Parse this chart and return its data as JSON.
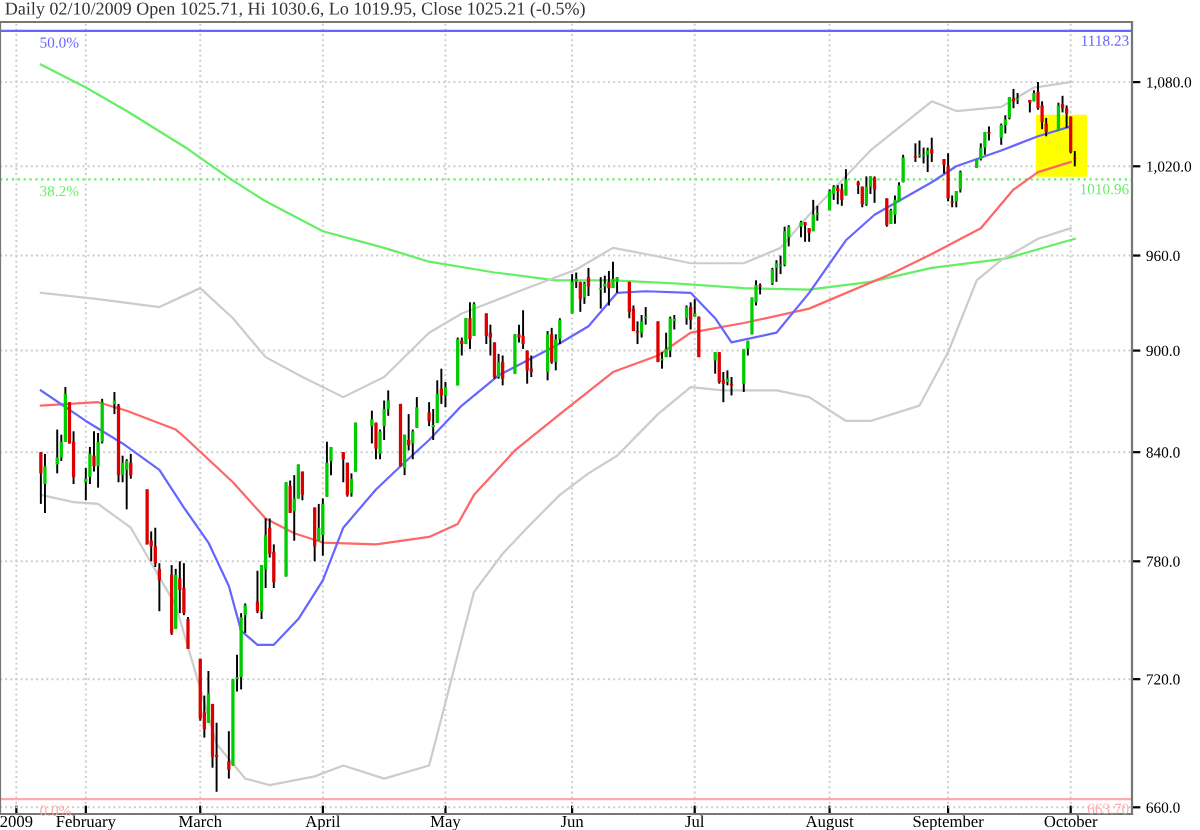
{
  "chart_data": {
    "type": "candlestick",
    "title": "Daily 02/10/2009 Open 1025.71, Hi 1030.6, Lo 1019.95, Close 1025.21 (-0.5%)",
    "x": [
      "2009-01-22",
      "2009-01-23",
      "2009-01-26",
      "2009-01-27",
      "2009-01-28",
      "2009-01-29",
      "2009-01-30",
      "2009-02-02",
      "2009-02-03",
      "2009-02-04",
      "2009-02-05",
      "2009-02-06",
      "2009-02-09",
      "2009-02-10",
      "2009-02-11",
      "2009-02-12",
      "2009-02-13",
      "2009-02-17",
      "2009-02-18",
      "2009-02-19",
      "2009-02-20",
      "2009-02-23",
      "2009-02-24",
      "2009-02-25",
      "2009-02-26",
      "2009-02-27",
      "2009-03-02",
      "2009-03-03",
      "2009-03-04",
      "2009-03-05",
      "2009-03-06",
      "2009-03-09",
      "2009-03-10",
      "2009-03-11",
      "2009-03-12",
      "2009-03-13",
      "2009-03-16",
      "2009-03-17",
      "2009-03-18",
      "2009-03-19",
      "2009-03-20",
      "2009-03-23",
      "2009-03-24",
      "2009-03-25",
      "2009-03-26",
      "2009-03-27",
      "2009-03-30",
      "2009-03-31",
      "2009-04-01",
      "2009-04-02",
      "2009-04-03",
      "2009-04-06",
      "2009-04-07",
      "2009-04-08",
      "2009-04-09",
      "2009-04-13",
      "2009-04-14",
      "2009-04-15",
      "2009-04-16",
      "2009-04-17",
      "2009-04-20",
      "2009-04-21",
      "2009-04-22",
      "2009-04-23",
      "2009-04-24",
      "2009-04-27",
      "2009-04-28",
      "2009-04-29",
      "2009-04-30",
      "2009-05-01",
      "2009-05-04",
      "2009-05-05",
      "2009-05-06",
      "2009-05-07",
      "2009-05-08",
      "2009-05-11",
      "2009-05-12",
      "2009-05-13",
      "2009-05-14",
      "2009-05-15",
      "2009-05-18",
      "2009-05-19",
      "2009-05-20",
      "2009-05-21",
      "2009-05-22",
      "2009-05-26",
      "2009-05-27",
      "2009-05-28",
      "2009-05-29",
      "2009-06-01",
      "2009-06-02",
      "2009-06-03",
      "2009-06-04",
      "2009-06-05",
      "2009-06-08",
      "2009-06-09",
      "2009-06-10",
      "2009-06-11",
      "2009-06-12",
      "2009-06-15",
      "2009-06-16",
      "2009-06-17",
      "2009-06-18",
      "2009-06-19",
      "2009-06-22",
      "2009-06-23",
      "2009-06-24",
      "2009-06-25",
      "2009-06-26",
      "2009-06-29",
      "2009-06-30",
      "2009-07-01",
      "2009-07-02",
      "2009-07-06",
      "2009-07-07",
      "2009-07-08",
      "2009-07-09",
      "2009-07-10",
      "2009-07-13",
      "2009-07-14",
      "2009-07-15",
      "2009-07-16",
      "2009-07-17",
      "2009-07-20",
      "2009-07-21",
      "2009-07-22",
      "2009-07-23",
      "2009-07-24",
      "2009-07-27",
      "2009-07-28",
      "2009-07-29",
      "2009-07-30",
      "2009-07-31",
      "2009-08-03",
      "2009-08-04",
      "2009-08-05",
      "2009-08-06",
      "2009-08-07",
      "2009-08-10",
      "2009-08-11",
      "2009-08-12",
      "2009-08-13",
      "2009-08-14",
      "2009-08-17",
      "2009-08-18",
      "2009-08-19",
      "2009-08-20",
      "2009-08-21",
      "2009-08-24",
      "2009-08-25",
      "2009-08-26",
      "2009-08-27",
      "2009-08-28",
      "2009-08-31",
      "2009-09-01",
      "2009-09-02",
      "2009-09-03",
      "2009-09-04",
      "2009-09-08",
      "2009-09-09",
      "2009-09-10",
      "2009-09-11",
      "2009-09-14",
      "2009-09-15",
      "2009-09-16",
      "2009-09-17",
      "2009-09-18",
      "2009-09-21",
      "2009-09-22",
      "2009-09-23",
      "2009-09-24",
      "2009-09-25",
      "2009-09-28",
      "2009-09-29",
      "2009-09-30",
      "2009-10-01",
      "2009-10-02"
    ],
    "ohlc": [
      [
        840,
        840,
        811,
        828
      ],
      [
        822,
        839,
        806,
        832
      ],
      [
        833,
        853,
        828,
        837
      ],
      [
        837,
        850,
        835,
        846
      ],
      [
        846,
        878,
        846,
        874
      ],
      [
        869,
        869,
        845,
        845
      ],
      [
        846,
        852,
        822,
        826
      ],
      [
        823,
        831,
        813,
        825
      ],
      [
        826,
        843,
        822,
        839
      ],
      [
        838,
        852,
        829,
        832
      ],
      [
        832,
        851,
        820,
        846
      ],
      [
        846,
        871,
        845,
        869
      ],
      [
        868,
        875,
        862,
        870
      ],
      [
        867,
        868,
        823,
        827
      ],
      [
        827,
        838,
        823,
        834
      ],
      [
        830,
        836,
        808,
        835
      ],
      [
        834,
        839,
        825,
        827
      ],
      [
        819,
        819,
        789,
        789
      ],
      [
        791,
        796,
        780,
        788
      ],
      [
        788,
        798,
        777,
        779
      ],
      [
        776,
        779,
        754,
        770
      ],
      [
        773,
        778,
        742,
        743
      ],
      [
        745,
        776,
        745,
        773
      ],
      [
        771,
        780,
        753,
        765
      ],
      [
        766,
        779,
        752,
        753
      ],
      [
        750,
        751,
        735,
        735
      ],
      [
        730,
        730,
        700,
        701
      ],
      [
        704,
        712,
        692,
        696
      ],
      [
        699,
        724,
        699,
        713
      ],
      [
        708,
        708,
        678,
        683
      ],
      [
        684,
        699,
        667,
        683
      ],
      [
        681,
        695,
        673,
        677
      ],
      [
        679,
        720,
        679,
        720
      ],
      [
        720,
        732,
        714,
        721
      ],
      [
        721,
        753,
        715,
        751
      ],
      [
        752,
        758,
        743,
        757
      ],
      [
        759,
        775,
        753,
        754
      ],
      [
        754,
        778,
        750,
        778
      ],
      [
        776,
        803,
        766,
        794
      ],
      [
        798,
        803,
        782,
        784
      ],
      [
        785,
        789,
        766,
        769
      ],
      [
        772,
        823,
        772,
        823
      ],
      [
        821,
        824,
        806,
        806
      ],
      [
        807,
        827,
        791,
        814
      ],
      [
        814,
        833,
        814,
        833
      ],
      [
        829,
        829,
        813,
        816
      ],
      [
        809,
        809,
        780,
        788
      ],
      [
        791,
        811,
        791,
        798
      ],
      [
        794,
        814,
        783,
        811
      ],
      [
        815,
        846,
        815,
        834
      ],
      [
        835,
        843,
        827,
        843
      ],
      [
        840,
        840,
        823,
        836
      ],
      [
        834,
        834,
        815,
        816
      ],
      [
        817,
        828,
        815,
        825
      ],
      [
        829,
        857,
        829,
        857
      ],
      [
        855,
        864,
        845,
        859
      ],
      [
        857,
        857,
        836,
        842
      ],
      [
        839,
        853,
        836,
        852
      ],
      [
        855,
        870,
        847,
        865
      ],
      [
        865,
        876,
        861,
        870
      ],
      [
        868,
        868,
        832,
        832
      ],
      [
        831,
        850,
        827,
        850
      ],
      [
        847,
        862,
        841,
        844
      ],
      [
        845,
        853,
        836,
        852
      ],
      [
        854,
        872,
        854,
        866
      ],
      [
        863,
        869,
        855,
        858
      ],
      [
        855,
        865,
        847,
        855
      ],
      [
        857,
        882,
        857,
        874
      ],
      [
        877,
        889,
        868,
        873
      ],
      [
        873,
        881,
        866,
        878
      ],
      [
        879,
        908,
        879,
        907
      ],
      [
        906,
        908,
        897,
        904
      ],
      [
        904,
        920,
        904,
        920
      ],
      [
        920,
        930,
        901,
        907
      ],
      [
        909,
        930,
        909,
        929
      ],
      [
        923,
        923,
        904,
        909
      ],
      [
        911,
        916,
        897,
        908
      ],
      [
        905,
        905,
        883,
        884
      ],
      [
        884,
        898,
        883,
        893
      ],
      [
        893,
        897,
        879,
        883
      ],
      [
        886,
        910,
        886,
        910
      ],
      [
        910,
        916,
        905,
        908
      ],
      [
        909,
        925,
        901,
        904
      ],
      [
        900,
        900,
        880,
        888
      ],
      [
        889,
        897,
        884,
        887
      ],
      [
        887,
        912,
        882,
        910
      ],
      [
        910,
        914,
        892,
        893
      ],
      [
        893,
        910,
        888,
        907
      ],
      [
        907,
        920,
        904,
        919
      ],
      [
        923,
        948,
        923,
        943
      ],
      [
        943,
        949,
        939,
        945
      ],
      [
        943,
        943,
        924,
        932
      ],
      [
        933,
        943,
        929,
        942
      ],
      [
        946,
        952,
        934,
        940
      ],
      [
        938,
        946,
        926,
        939
      ],
      [
        940,
        947,
        936,
        942
      ],
      [
        943,
        950,
        928,
        939
      ],
      [
        939,
        956,
        939,
        945
      ],
      [
        943,
        946,
        936,
        946
      ],
      [
        943,
        943,
        920,
        924
      ],
      [
        926,
        928,
        912,
        912
      ],
      [
        912,
        918,
        904,
        911
      ],
      [
        911,
        922,
        908,
        918
      ],
      [
        920,
        927,
        916,
        921
      ],
      [
        918,
        918,
        893,
        893
      ],
      [
        894,
        899,
        889,
        895
      ],
      [
        896,
        911,
        896,
        901
      ],
      [
        900,
        921,
        896,
        920
      ],
      [
        919,
        922,
        913,
        919
      ],
      [
        920,
        928,
        916,
        927
      ],
      [
        927,
        930,
        913,
        919
      ],
      [
        921,
        932,
        921,
        923
      ],
      [
        921,
        921,
        896,
        896
      ],
      [
        894,
        899,
        886,
        899
      ],
      [
        899,
        899,
        880,
        881
      ],
      [
        882,
        887,
        869,
        880
      ],
      [
        881,
        888,
        879,
        883
      ],
      [
        880,
        884,
        873,
        879
      ],
      [
        880,
        901,
        875,
        901
      ],
      [
        901,
        906,
        897,
        906
      ],
      [
        910,
        933,
        910,
        933
      ],
      [
        930,
        944,
        928,
        941
      ],
      [
        941,
        942,
        935,
        940
      ],
      [
        942,
        952,
        941,
        951
      ],
      [
        952,
        957,
        943,
        955
      ],
      [
        953,
        960,
        948,
        954
      ],
      [
        954,
        979,
        953,
        976
      ],
      [
        972,
        980,
        966,
        979
      ],
      [
        979,
        983,
        972,
        982
      ],
      [
        982,
        982,
        969,
        980
      ],
      [
        978,
        978,
        969,
        975
      ],
      [
        976,
        997,
        976,
        987
      ],
      [
        987,
        993,
        983,
        988
      ],
      [
        990,
        1004,
        990,
        1003
      ],
      [
        1001,
        1007,
        997,
        1006
      ],
      [
        1005,
        1007,
        994,
        1003
      ],
      [
        1004,
        1008,
        993,
        997
      ],
      [
        1000,
        1018,
        1000,
        1011
      ],
      [
        1009,
        1010,
        1001,
        1007
      ],
      [
        1006,
        1006,
        992,
        994
      ],
      [
        994,
        1013,
        993,
        1006
      ],
      [
        1006,
        1013,
        1001,
        1013
      ],
      [
        1012,
        1013,
        995,
        1004
      ],
      [
        998,
        998,
        979,
        980
      ],
      [
        981,
        991,
        981,
        990
      ],
      [
        987,
        1000,
        981,
        997
      ],
      [
        996,
        1009,
        996,
        1007
      ],
      [
        1009,
        1028,
        1009,
        1026
      ],
      [
        1027,
        1036,
        1023,
        1026
      ],
      [
        1027,
        1038,
        1026,
        1028
      ],
      [
        1027,
        1033,
        1022,
        1028
      ],
      [
        1028,
        1033,
        1016,
        1031
      ],
      [
        1032,
        1040,
        1023,
        1029
      ],
      [
        1025,
        1025,
        1015,
        1021
      ],
      [
        1020,
        1029,
        996,
        998
      ],
      [
        996,
        1000,
        992,
        995
      ],
      [
        996,
        1003,
        992,
        1003
      ],
      [
        1004,
        1017,
        1002,
        1016
      ],
      [
        1019,
        1025,
        1019,
        1025
      ],
      [
        1025,
        1036,
        1024,
        1033
      ],
      [
        1033,
        1044,
        1028,
        1044
      ],
      [
        1044,
        1048,
        1038,
        1043
      ],
      [
        1040,
        1050,
        1035,
        1049
      ],
      [
        1049,
        1056,
        1043,
        1053
      ],
      [
        1054,
        1069,
        1053,
        1069
      ],
      [
        1068,
        1075,
        1061,
        1066
      ],
      [
        1067,
        1072,
        1064,
        1068
      ],
      [
        1067,
        1067,
        1058,
        1065
      ],
      [
        1066,
        1074,
        1066,
        1072
      ],
      [
        1073,
        1080,
        1060,
        1061
      ],
      [
        1063,
        1066,
        1046,
        1051
      ],
      [
        1050,
        1054,
        1041,
        1044
      ],
      [
        1045,
        1065,
        1045,
        1063
      ],
      [
        1064,
        1070,
        1058,
        1061
      ],
      [
        1061,
        1063,
        1047,
        1057
      ],
      [
        1055,
        1055,
        1029,
        1030
      ],
      [
        1025.71,
        1030.6,
        1019.95,
        1025.21
      ]
    ],
    "series": [
      {
        "type": "line",
        "color": "#66ee66",
        "x": [
          "2009-01-22",
          "2009-02-02",
          "2009-02-12",
          "2009-02-27",
          "2009-03-09",
          "2009-03-18",
          "2009-04-01",
          "2009-04-16",
          "2009-04-27",
          "2009-05-13",
          "2009-05-28",
          "2009-06-11",
          "2009-06-26",
          "2009-07-13",
          "2009-07-29",
          "2009-08-13",
          "2009-08-28",
          "2009-09-15",
          "2009-10-02"
        ],
        "values": [
          1093,
          1076,
          1059,
          1032,
          1012,
          996,
          976,
          965,
          956,
          949,
          944,
          944,
          942,
          939,
          938,
          943,
          952,
          958,
          971
        ]
      },
      {
        "type": "line",
        "color": "#ff6666",
        "x": [
          "2009-01-22",
          "2009-02-05",
          "2009-02-12",
          "2009-02-24",
          "2009-02-26",
          "2009-03-10",
          "2009-03-18",
          "2009-03-25",
          "2009-04-01",
          "2009-04-14",
          "2009-04-27",
          "2009-05-04",
          "2009-05-08",
          "2009-05-18",
          "2009-05-29",
          "2009-06-11",
          "2009-06-22",
          "2009-06-30",
          "2009-07-13",
          "2009-07-29",
          "2009-08-18",
          "2009-08-28",
          "2009-09-09",
          "2009-09-17",
          "2009-09-23",
          "2009-10-01"
        ],
        "values": [
          867,
          869,
          864,
          853,
          849,
          823,
          803,
          795,
          790,
          789,
          793,
          800,
          816,
          841,
          862,
          887,
          897,
          911,
          917,
          926,
          948,
          961,
          978,
          1004,
          1016,
          1023
        ]
      },
      {
        "type": "line",
        "color": "#6666ff",
        "x": [
          "2009-01-22",
          "2009-02-02",
          "2009-02-11",
          "2009-02-20",
          "2009-02-26",
          "2009-03-04",
          "2009-03-09",
          "2009-03-12",
          "2009-03-16",
          "2009-03-20",
          "2009-03-26",
          "2009-04-01",
          "2009-04-06",
          "2009-04-14",
          "2009-04-20",
          "2009-04-27",
          "2009-05-05",
          "2009-05-14",
          "2009-05-28",
          "2009-06-05",
          "2009-06-12",
          "2009-06-19",
          "2009-06-30",
          "2009-07-06",
          "2009-07-10",
          "2009-07-21",
          "2009-07-29",
          "2009-08-07",
          "2009-08-14",
          "2009-08-28",
          "2009-09-03",
          "2009-09-14",
          "2009-09-23",
          "2009-10-01"
        ],
        "values": [
          876,
          858,
          845,
          830,
          809,
          790,
          767,
          744,
          737,
          737,
          750,
          770,
          798,
          819,
          832,
          847,
          867,
          885,
          903,
          915,
          936,
          937,
          936,
          920,
          905,
          911,
          936,
          970,
          987,
          1009,
          1020,
          1031,
          1041,
          1048
        ]
      },
      {
        "type": "line",
        "color": "#cccccc",
        "x": [
          "2009-01-22",
          "2009-02-05",
          "2009-02-20",
          "2009-03-02",
          "2009-03-10",
          "2009-03-18",
          "2009-03-27",
          "2009-04-06",
          "2009-04-16",
          "2009-04-27",
          "2009-05-05",
          "2009-05-18",
          "2009-06-02",
          "2009-06-11",
          "2009-06-19",
          "2009-06-30",
          "2009-07-13",
          "2009-07-22",
          "2009-07-29",
          "2009-08-13",
          "2009-08-28",
          "2009-09-03",
          "2009-09-14",
          "2009-09-22",
          "2009-10-01"
        ],
        "values": [
          936,
          932,
          927,
          939,
          920,
          896,
          884,
          872,
          884,
          911,
          923,
          936,
          951,
          965,
          961,
          955,
          955,
          965,
          987,
          1031,
          1066,
          1059,
          1062,
          1076,
          1080
        ]
      },
      {
        "type": "line",
        "color": "#cccccc",
        "x": [
          "2009-01-22",
          "2009-01-30",
          "2009-02-05",
          "2009-02-13",
          "2009-02-24",
          "2009-03-06",
          "2009-03-13",
          "2009-03-19",
          "2009-03-30",
          "2009-04-06",
          "2009-04-16",
          "2009-04-27",
          "2009-04-30",
          "2009-05-05",
          "2009-05-08",
          "2009-05-15",
          "2009-05-21",
          "2009-05-29",
          "2009-06-05",
          "2009-06-12",
          "2009-06-22",
          "2009-06-30",
          "2009-07-08",
          "2009-07-21",
          "2009-07-29",
          "2009-08-07",
          "2009-08-13",
          "2009-08-25",
          "2009-09-01",
          "2009-09-08",
          "2009-09-14",
          "2009-09-23",
          "2009-10-01"
        ],
        "values": [
          816,
          812,
          811,
          798,
          757,
          689,
          673,
          670,
          674,
          679,
          673,
          679,
          701,
          740,
          764,
          784,
          798,
          816,
          828,
          838,
          862,
          878,
          876,
          876,
          872,
          858,
          858,
          867,
          899,
          944,
          957,
          971,
          978
        ]
      }
    ],
    "ref_lines": [
      {
        "axis": "y",
        "value": 1118.23,
        "label": "1118.23",
        "color": "#6666ff",
        "line_style": "solid"
      },
      {
        "axis": "y",
        "value": 1010.96,
        "label": "1010.96",
        "color": "#66ee66",
        "line_style": "dotted"
      },
      {
        "axis": "y",
        "value": 663.7,
        "label": "663.70",
        "color": "#ffaaaa",
        "line_style": "solid"
      }
    ],
    "annotations": [
      {
        "text": "50.0%",
        "x": "2009-01-21",
        "y": 1118.23
      },
      {
        "text": "38.2%",
        "x": "2009-01-21",
        "y": 1010.96
      },
      {
        "text": "0.0%",
        "x": "2009-01-21",
        "y": 663.7
      }
    ],
    "log": "y",
    "ylim": [
      657,
      1125
    ],
    "yticks": [
      {
        "value": 660,
        "label": "660.0"
      },
      {
        "value": 720,
        "label": "720.0"
      },
      {
        "value": 780,
        "label": "780.0"
      },
      {
        "value": 840,
        "label": "840.0"
      },
      {
        "value": 900,
        "label": "900.0"
      },
      {
        "value": 960,
        "label": "960.0"
      },
      {
        "value": 1020,
        "label": "1,020.0"
      },
      {
        "value": 1080,
        "label": "1,080.0"
      }
    ],
    "xlim": [
      "2009-01-12",
      "2009-10-16"
    ],
    "xticks": [
      {
        "value": "2009-01-16",
        "label": "2009"
      },
      {
        "value": "2009-02-02",
        "label": "February"
      },
      {
        "value": "2009-03-02",
        "label": "March"
      },
      {
        "value": "2009-04-01",
        "label": "April"
      },
      {
        "value": "2009-05-01",
        "label": "May"
      },
      {
        "value": "2009-06-01",
        "label": "Jun"
      },
      {
        "value": "2009-07-01",
        "label": "Jul"
      },
      {
        "value": "2009-08-03",
        "label": "August"
      },
      {
        "value": "2009-09-01",
        "label": "September"
      },
      {
        "value": "2009-10-01",
        "label": "October"
      }
    ],
    "grid": true,
    "legend": false
  }
}
